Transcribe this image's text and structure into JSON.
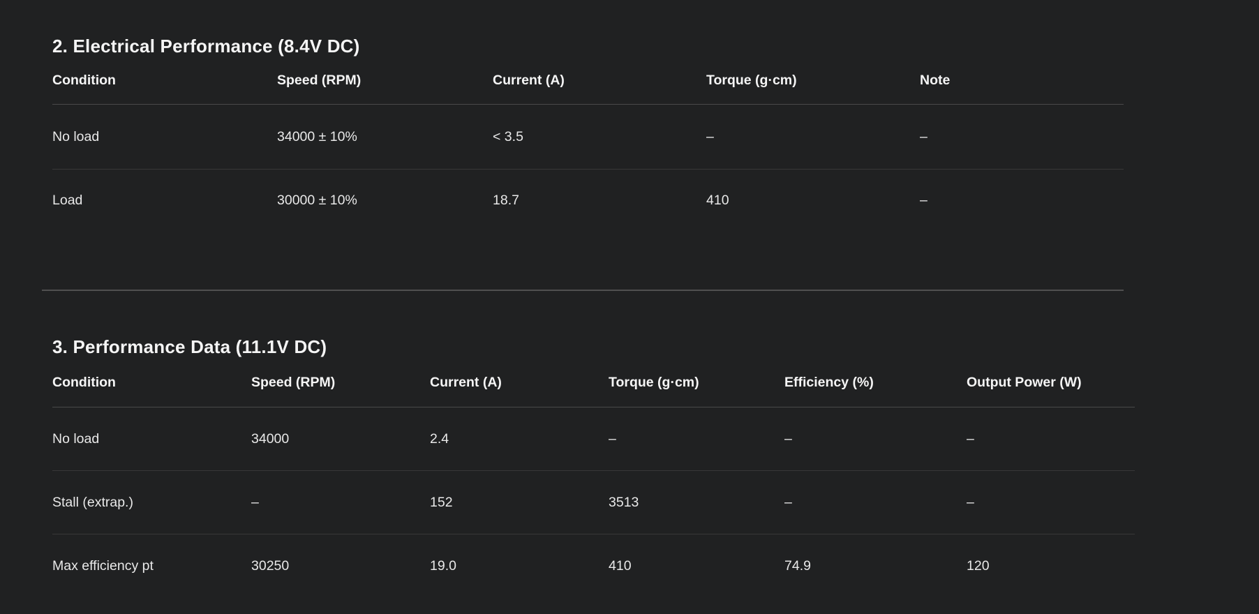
{
  "page": {
    "background_color": "#202122",
    "text_color": "#ececec",
    "divider_color": "#505050"
  },
  "sections": [
    {
      "title": "2. Electrical Performance (8.4V DC)",
      "columns": [
        "Condition",
        "Speed (RPM)",
        "Current (A)",
        "Torque (g·cm)",
        "Note"
      ],
      "rows": [
        [
          "No load",
          "34000 ± 10%",
          "< 3.5",
          "–",
          "–"
        ],
        [
          "Load",
          "30000 ± 10%",
          "18.7",
          "410",
          "–"
        ]
      ]
    },
    {
      "title": "3. Performance Data (11.1V DC)",
      "columns": [
        "Condition",
        "Speed (RPM)",
        "Current (A)",
        "Torque (g·cm)",
        "Efficiency (%)",
        "Output Power (W)"
      ],
      "rows": [
        [
          "No load",
          "34000",
          "2.4",
          "–",
          "–",
          "–"
        ],
        [
          "Stall (extrap.)",
          "–",
          "152",
          "3513",
          "–",
          "–"
        ],
        [
          "Max efficiency pt",
          "30250",
          "19.0",
          "410",
          "74.9",
          "120"
        ]
      ]
    }
  ]
}
